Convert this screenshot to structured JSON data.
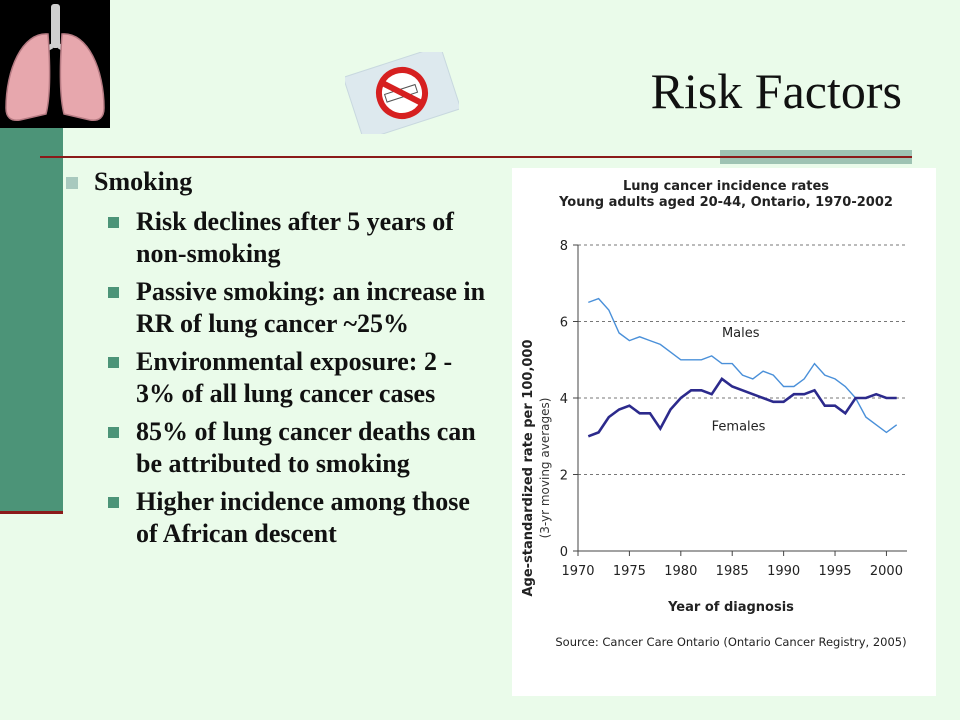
{
  "slide": {
    "title": "Risk Factors",
    "bullet_main": "Smoking",
    "sub_bullets": [
      "Risk declines after 5 years of non-smoking",
      "Passive smoking: an increase in RR of lung cancer ~25%",
      "Environmental exposure: 2 - 3% of all lung cancer cases",
      "85% of lung cancer deaths can be attributed to smoking",
      "Higher incidence among those of African descent"
    ],
    "images": {
      "lungs": "lungs-illustration",
      "no_smoking": "no-smoking-sign-icon"
    },
    "colors": {
      "background": "#eafbea",
      "accent": "#4c9478",
      "rule": "#8b1a1a"
    }
  },
  "chart_data": {
    "type": "line",
    "title": "Lung cancer incidence rates",
    "subtitle": "Young adults aged 20-44, Ontario, 1970-2002",
    "xlabel": "Year of diagnosis",
    "ylabel": "Age-standardized rate per 100,000",
    "ylabel2": "(3-yr moving averages)",
    "source": "Source: Cancer Care Ontario (Ontario Cancer Registry, 2005)",
    "xlim": [
      1970,
      2002
    ],
    "ylim": [
      0,
      8
    ],
    "x_ticks": [
      "1970",
      "1975",
      "1980",
      "1985",
      "1990",
      "1995",
      "2000"
    ],
    "y_ticks": [
      "0",
      "2",
      "4",
      "6",
      "8"
    ],
    "grid": "horizontal dashed",
    "x": [
      1971,
      1972,
      1973,
      1974,
      1975,
      1976,
      1977,
      1978,
      1979,
      1980,
      1981,
      1982,
      1983,
      1984,
      1985,
      1986,
      1987,
      1988,
      1989,
      1990,
      1991,
      1992,
      1993,
      1994,
      1995,
      1996,
      1997,
      1998,
      1999,
      2000,
      2001
    ],
    "series": [
      {
        "name": "Males",
        "color": "#4a90d9",
        "values": [
          6.5,
          6.6,
          6.3,
          5.7,
          5.5,
          5.6,
          5.5,
          5.4,
          5.2,
          5.0,
          5.0,
          5.0,
          5.1,
          4.9,
          4.9,
          4.6,
          4.5,
          4.7,
          4.6,
          4.3,
          4.3,
          4.5,
          4.9,
          4.6,
          4.5,
          4.3,
          4.0,
          3.5,
          3.3,
          3.1,
          3.3
        ]
      },
      {
        "name": "Females",
        "color": "#2c2a8c",
        "values": [
          3.0,
          3.1,
          3.5,
          3.7,
          3.8,
          3.6,
          3.6,
          3.2,
          3.7,
          4.0,
          4.2,
          4.2,
          4.1,
          4.5,
          4.3,
          4.2,
          4.1,
          4.0,
          3.9,
          3.9,
          4.1,
          4.1,
          4.2,
          3.8,
          3.8,
          3.6,
          4.0,
          4.0,
          4.1,
          4.0,
          4.0
        ]
      }
    ]
  }
}
